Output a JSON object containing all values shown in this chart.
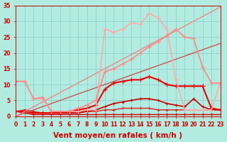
{
  "title": "",
  "xlabel": "Vent moyen/en rafales ( km/h )",
  "ylabel": "",
  "bg_color": "#b2ece0",
  "grid_color": "#88cccc",
  "xlim": [
    0,
    23
  ],
  "ylim": [
    0,
    35
  ],
  "xticks": [
    0,
    1,
    2,
    3,
    4,
    5,
    6,
    7,
    8,
    9,
    10,
    11,
    12,
    13,
    14,
    15,
    16,
    17,
    18,
    19,
    20,
    21,
    22,
    23
  ],
  "yticks": [
    0,
    5,
    10,
    15,
    20,
    25,
    30,
    35
  ],
  "lines": [
    {
      "x": [
        0,
        1,
        2,
        3,
        4,
        5,
        6,
        7,
        8,
        9,
        10,
        11,
        12,
        13,
        14,
        15,
        16,
        17,
        18,
        19,
        20,
        21,
        22,
        23
      ],
      "y": [
        1.5,
        1.0,
        0.5,
        0.5,
        0.5,
        0.5,
        0.5,
        0.5,
        0.5,
        0.5,
        0.5,
        0.5,
        0.5,
        0.5,
        0.5,
        0.5,
        0.5,
        0.5,
        0.5,
        0.5,
        0.5,
        0.5,
        0.5,
        0.5
      ],
      "color": "#cc0000",
      "lw": 1.0,
      "marker": "+",
      "ms": 3
    },
    {
      "x": [
        0,
        1,
        2,
        3,
        4,
        5,
        6,
        7,
        8,
        9,
        10,
        11,
        12,
        13,
        14,
        15,
        16,
        17,
        18,
        19,
        20,
        21,
        22,
        23
      ],
      "y": [
        1.5,
        2.0,
        1.5,
        1.0,
        1.0,
        1.0,
        1.0,
        1.5,
        1.5,
        1.5,
        2.0,
        2.0,
        2.5,
        2.5,
        2.5,
        2.5,
        2.0,
        2.0,
        2.0,
        2.0,
        2.0,
        2.0,
        2.0,
        2.0
      ],
      "color": "#dd2222",
      "lw": 1.0,
      "marker": "+",
      "ms": 3
    },
    {
      "x": [
        0,
        1,
        2,
        3,
        4,
        5,
        6,
        7,
        8,
        9,
        10,
        11,
        12,
        13,
        14,
        15,
        16,
        17,
        18,
        19,
        20,
        21,
        22,
        23
      ],
      "y": [
        1.5,
        1.5,
        1.0,
        1.0,
        1.0,
        1.0,
        1.0,
        1.0,
        1.5,
        2.0,
        3.0,
        4.0,
        4.5,
        5.0,
        5.5,
        5.5,
        5.0,
        4.0,
        3.5,
        3.0,
        5.5,
        3.0,
        2.0,
        2.0
      ],
      "color": "#cc0000",
      "lw": 1.2,
      "marker": "+",
      "ms": 3
    },
    {
      "x": [
        0,
        1,
        2,
        3,
        4,
        5,
        6,
        7,
        8,
        9,
        10,
        11,
        12,
        13,
        14,
        15,
        16,
        17,
        18,
        19,
        20,
        21,
        22,
        23
      ],
      "y": [
        1.5,
        1.5,
        1.0,
        1.0,
        1.0,
        1.0,
        1.5,
        2.0,
        2.5,
        3.5,
        8.5,
        10.5,
        11.0,
        11.5,
        11.5,
        12.5,
        11.5,
        10.0,
        9.5,
        9.5,
        9.5,
        9.5,
        2.5,
        2.0
      ],
      "color": "#ee0000",
      "lw": 1.5,
      "marker": "+",
      "ms": 4
    },
    {
      "x": [
        0,
        1,
        2,
        3,
        4,
        5,
        6,
        7,
        8,
        9,
        10,
        11,
        12,
        13,
        14,
        15,
        16,
        17,
        18,
        19,
        20,
        21,
        22,
        23
      ],
      "y": [
        0,
        1,
        2,
        3,
        4,
        5,
        6,
        7,
        8,
        9,
        10,
        11,
        12,
        13,
        14,
        15,
        16,
        17,
        18,
        19,
        20,
        21,
        22,
        23
      ],
      "color": "#cc5555",
      "lw": 1.0,
      "marker": null,
      "ms": 0
    },
    {
      "x": [
        0,
        1,
        2,
        3,
        4,
        5,
        6,
        7,
        8,
        9,
        10,
        11,
        12,
        13,
        14,
        15,
        16,
        17,
        18,
        19,
        20,
        21,
        22,
        23
      ],
      "y": [
        0,
        1.5,
        3.0,
        4.5,
        6.0,
        7.5,
        9.0,
        10.5,
        12.0,
        13.5,
        15.0,
        16.5,
        18.0,
        19.5,
        21.0,
        22.5,
        24.0,
        25.5,
        27.0,
        28.5,
        30.0,
        31.5,
        33.0,
        34.5
      ],
      "color": "#ee8888",
      "lw": 1.0,
      "marker": null,
      "ms": 0
    },
    {
      "x": [
        0,
        1,
        2,
        3,
        4,
        5,
        6,
        7,
        8,
        9,
        10,
        11,
        12,
        13,
        14,
        15,
        16,
        17,
        18,
        19,
        20,
        21,
        22,
        23
      ],
      "y": [
        11.0,
        11.0,
        5.5,
        5.5,
        1.5,
        1.5,
        1.5,
        1.5,
        2.0,
        2.0,
        27.5,
        26.5,
        27.5,
        29.5,
        29.0,
        32.5,
        31.0,
        27.5,
        11.5,
        2.0,
        2.0,
        2.0,
        2.0,
        10.5
      ],
      "color": "#ffaaaa",
      "lw": 1.2,
      "marker": "+",
      "ms": 4
    },
    {
      "x": [
        0,
        1,
        2,
        3,
        4,
        5,
        6,
        7,
        8,
        9,
        10,
        11,
        12,
        13,
        14,
        15,
        16,
        17,
        18,
        19,
        20,
        21,
        22,
        23
      ],
      "y": [
        11.0,
        11.0,
        5.5,
        6.0,
        1.5,
        1.5,
        1.5,
        2.5,
        3.5,
        5.0,
        14.0,
        15.0,
        16.5,
        18.0,
        20.0,
        22.0,
        23.5,
        25.5,
        27.5,
        25.0,
        24.5,
        15.5,
        10.5,
        10.5
      ],
      "color": "#ff8888",
      "lw": 1.2,
      "marker": "+",
      "ms": 4
    }
  ],
  "tick_color": "#cc0000",
  "label_color": "#cc0000",
  "tick_fontsize": 5.5,
  "xlabel_fontsize": 7.5
}
